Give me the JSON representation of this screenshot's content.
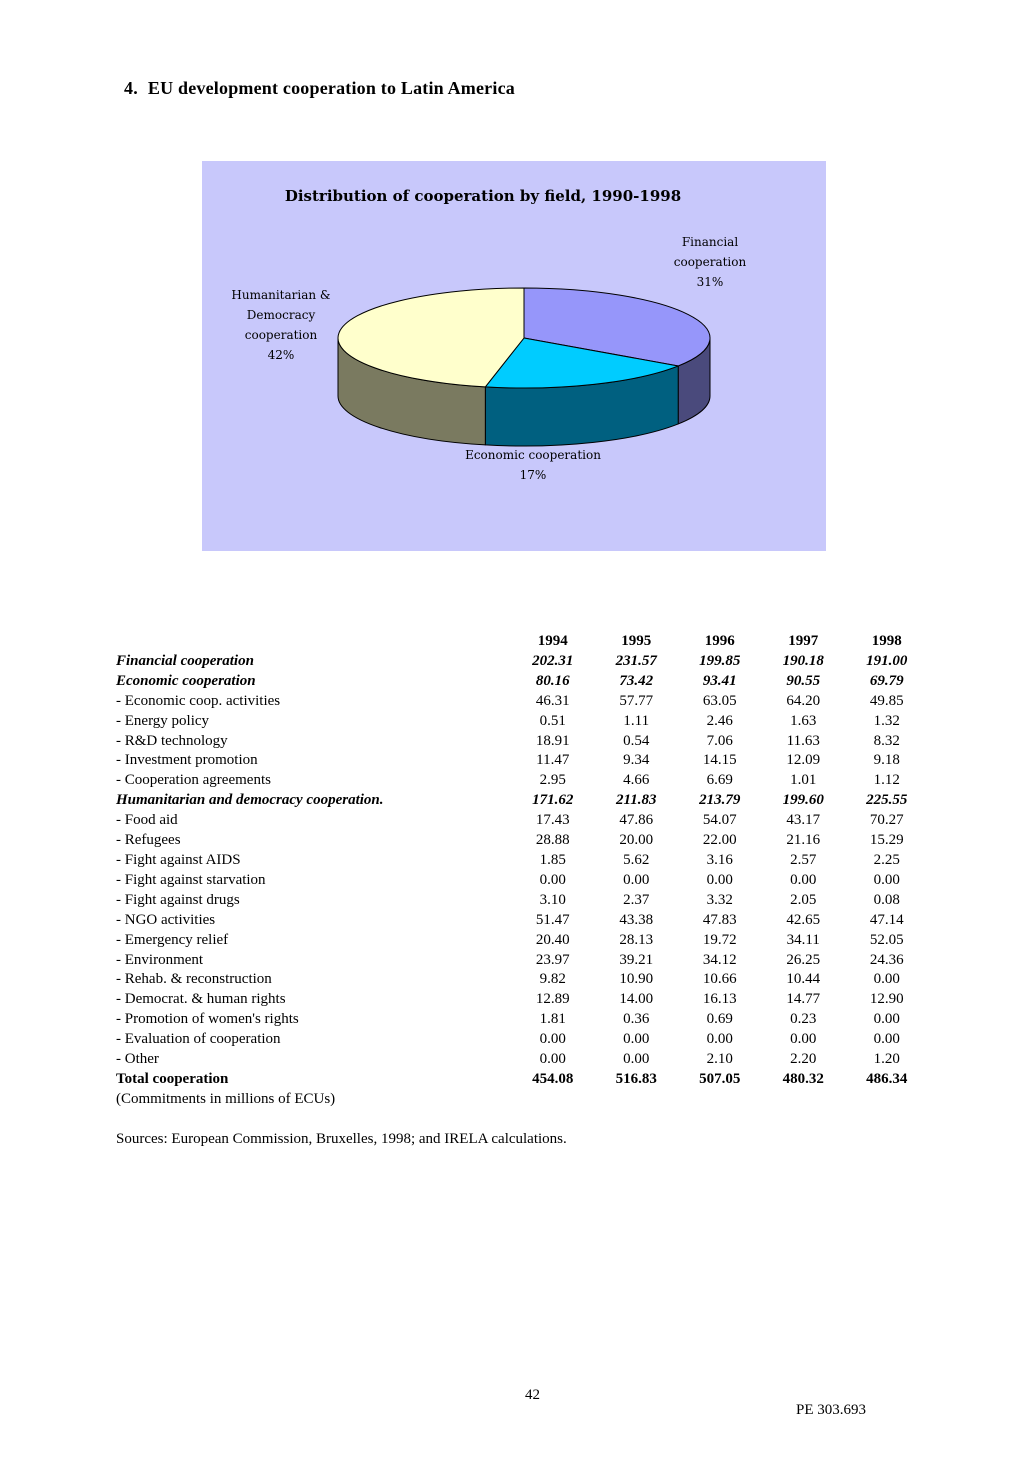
{
  "heading": {
    "number": "4.",
    "text": "EU development cooperation to Latin America"
  },
  "chart_data": {
    "type": "pie",
    "title": "Distribution of cooperation by field, 1990-1998",
    "slices": [
      {
        "label_lines": [
          "Financial",
          "cooperation"
        ],
        "percent_label": "31%",
        "value": 31,
        "color": "#9696fa",
        "side_color": "#4a4a7c"
      },
      {
        "label_lines": [
          "Economic cooperation"
        ],
        "percent_label": "17%",
        "value": 17,
        "color": "#00ccff",
        "side_color": "#006080"
      },
      {
        "label_lines": [
          "Humanitarian &",
          "Democracy",
          "cooperation"
        ],
        "percent_label": "42%",
        "value": 42,
        "color": "#ffffcc",
        "side_color": "#7a7a60"
      }
    ]
  },
  "table": {
    "years": [
      "1994",
      "1995",
      "1996",
      "1997",
      "1998"
    ],
    "rows": [
      {
        "label": "Financial cooperation",
        "style": "section",
        "values": [
          "202.31",
          "231.57",
          "199.85",
          "190.18",
          "191.00"
        ]
      },
      {
        "label": "Economic cooperation",
        "style": "section",
        "values": [
          "80.16",
          "73.42",
          "93.41",
          "90.55",
          "69.79"
        ]
      },
      {
        "label": "- Economic coop. activities",
        "style": "item",
        "values": [
          "46.31",
          "57.77",
          "63.05",
          "64.20",
          "49.85"
        ]
      },
      {
        "label": "- Energy policy",
        "style": "item",
        "values": [
          "0.51",
          "1.11",
          "2.46",
          "1.63",
          "1.32"
        ]
      },
      {
        "label": "- R&D technology",
        "style": "item",
        "values": [
          "18.91",
          "0.54",
          "7.06",
          "11.63",
          "8.32"
        ]
      },
      {
        "label": "- Investment promotion",
        "style": "item",
        "values": [
          "11.47",
          "9.34",
          "14.15",
          "12.09",
          "9.18"
        ]
      },
      {
        "label": "- Cooperation agreements",
        "style": "item",
        "values": [
          "2.95",
          "4.66",
          "6.69",
          "1.01",
          "1.12"
        ]
      },
      {
        "label": "Humanitarian and democracy cooperation.",
        "style": "section",
        "values": [
          "171.62",
          "211.83",
          "213.79",
          "199.60",
          "225.55"
        ]
      },
      {
        "label": "- Food aid",
        "style": "item",
        "values": [
          "17.43",
          "47.86",
          "54.07",
          "43.17",
          "70.27"
        ]
      },
      {
        "label": "- Refugees",
        "style": "item",
        "values": [
          "28.88",
          "20.00",
          "22.00",
          "21.16",
          "15.29"
        ]
      },
      {
        "label": "- Fight against AIDS",
        "style": "item",
        "values": [
          "1.85",
          "5.62",
          "3.16",
          "2.57",
          "2.25"
        ]
      },
      {
        "label": "- Fight against starvation",
        "style": "item",
        "values": [
          "0.00",
          "0.00",
          "0.00",
          "0.00",
          "0.00"
        ]
      },
      {
        "label": "- Fight against drugs",
        "style": "item",
        "values": [
          "3.10",
          "2.37",
          "3.32",
          "2.05",
          "0.08"
        ]
      },
      {
        "label": "- NGO activities",
        "style": "item",
        "values": [
          "51.47",
          "43.38",
          "47.83",
          "42.65",
          "47.14"
        ]
      },
      {
        "label": "- Emergency relief",
        "style": "item",
        "values": [
          "20.40",
          "28.13",
          "19.72",
          "34.11",
          "52.05"
        ]
      },
      {
        "label": "- Environment",
        "style": "item",
        "values": [
          "23.97",
          "39.21",
          "34.12",
          "26.25",
          "24.36"
        ]
      },
      {
        "label": "- Rehab. & reconstruction",
        "style": "item",
        "values": [
          "9.82",
          "10.90",
          "10.66",
          "10.44",
          "0.00"
        ]
      },
      {
        "label": "- Democrat. & human rights",
        "style": "item",
        "values": [
          "12.89",
          "14.00",
          "16.13",
          "14.77",
          "12.90"
        ]
      },
      {
        "label": "- Promotion of women's rights",
        "style": "item",
        "values": [
          "1.81",
          "0.36",
          "0.69",
          "0.23",
          "0.00"
        ]
      },
      {
        "label": "- Evaluation of cooperation",
        "style": "item",
        "values": [
          "0.00",
          "0.00",
          "0.00",
          "0.00",
          "0.00"
        ]
      },
      {
        "label": "- Other",
        "style": "item",
        "values": [
          "0.00",
          "0.00",
          "2.10",
          "2.20",
          "1.20"
        ]
      },
      {
        "label": "Total cooperation",
        "style": "total",
        "values": [
          "454.08",
          "516.83",
          "507.05",
          "480.32",
          "486.34"
        ]
      }
    ]
  },
  "note": "(Commitments in millions of ECUs)",
  "sources": "Sources: European Commission, Bruxelles, 1998; and IRELA calculations.",
  "footer": {
    "page_number": "42",
    "doc_ref": "PE 303.693"
  }
}
